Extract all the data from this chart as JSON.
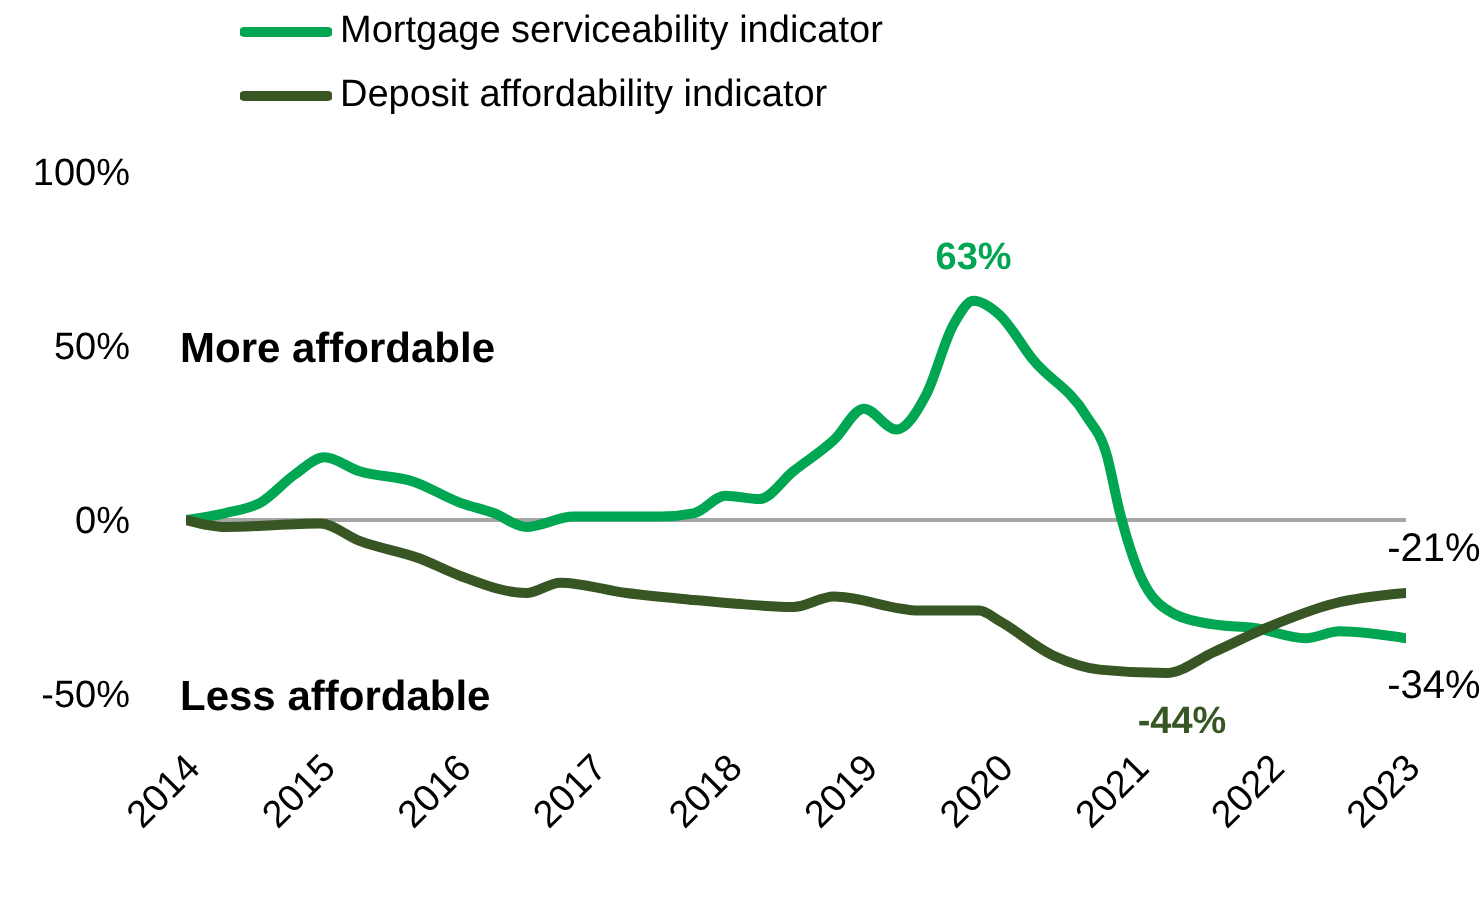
{
  "chart_data": {
    "type": "line",
    "legend": "top left",
    "marker": "none",
    "line_style": "solid",
    "xlim": [
      2014,
      2023
    ],
    "xticks": [
      2014,
      2015,
      2016,
      2017,
      2018,
      2019,
      2020,
      2021,
      2022,
      2023
    ],
    "ylim": [
      -50,
      100
    ],
    "yticks": [
      {
        "value": -50,
        "label": "-50%"
      },
      {
        "value": 0,
        "label": "0%"
      },
      {
        "value": 50,
        "label": "50%"
      },
      {
        "value": 100,
        "label": "100%"
      }
    ],
    "ref_lines": [
      {
        "axis": "y",
        "value": 0,
        "label": null,
        "color": "#a6a6a6"
      }
    ],
    "annotations": [
      "More affordable",
      "Less affordable",
      {
        "text": "63%",
        "x": 2019.81,
        "y": 63
      },
      {
        "text": "-44%",
        "x": 2021.23,
        "y": -44
      },
      {
        "text": "-21%",
        "x": 2023,
        "y": -21
      },
      {
        "text": "-34%",
        "x": 2023,
        "y": -34
      }
    ],
    "series": [
      {
        "name": "Mortgage serviceability indicator",
        "color": "#00a651",
        "x": [
          2014,
          2014.29,
          2014.55,
          2014.8,
          2015.02,
          2015.28,
          2015.68,
          2016.02,
          2016.27,
          2016.51,
          2016.86,
          2017.5,
          2017.75,
          2017.98,
          2018.23,
          2018.48,
          2018.78,
          2019,
          2019.24,
          2019.46,
          2019.66,
          2019.81,
          2020,
          2020.25,
          2020.64,
          2020.79,
          2020.89,
          2021.04,
          2021.29,
          2021.58,
          2021.88,
          2022.26,
          2022.51,
          2023
        ],
        "values": [
          0,
          2,
          5,
          13,
          18,
          14,
          11,
          5,
          2,
          -2,
          1,
          1,
          2,
          7,
          6,
          14,
          23,
          32,
          26,
          36,
          56,
          63,
          59,
          46,
          30,
          19,
          2,
          -16,
          -27,
          -30,
          -31,
          -34,
          -32,
          -34
        ]
      },
      {
        "name": "Deposit affordability indicator",
        "color": "#375623",
        "x": [
          2014,
          2014.29,
          2014.99,
          2015.28,
          2015.72,
          2016.02,
          2016.51,
          2016.76,
          2017.25,
          2017.75,
          2018.04,
          2018.48,
          2018.78,
          2019.41,
          2019.85,
          2020,
          2020.4,
          2020.74,
          2021.23,
          2021.58,
          2021.97,
          2022.47,
          2023
        ],
        "values": [
          0,
          -2,
          -1,
          -6,
          -11,
          -16,
          -21,
          -18,
          -21,
          -23,
          -24,
          -25,
          -22,
          -26,
          -26,
          -29,
          -39,
          -43,
          -44,
          -38,
          -31,
          -24,
          -21
        ]
      }
    ]
  }
}
